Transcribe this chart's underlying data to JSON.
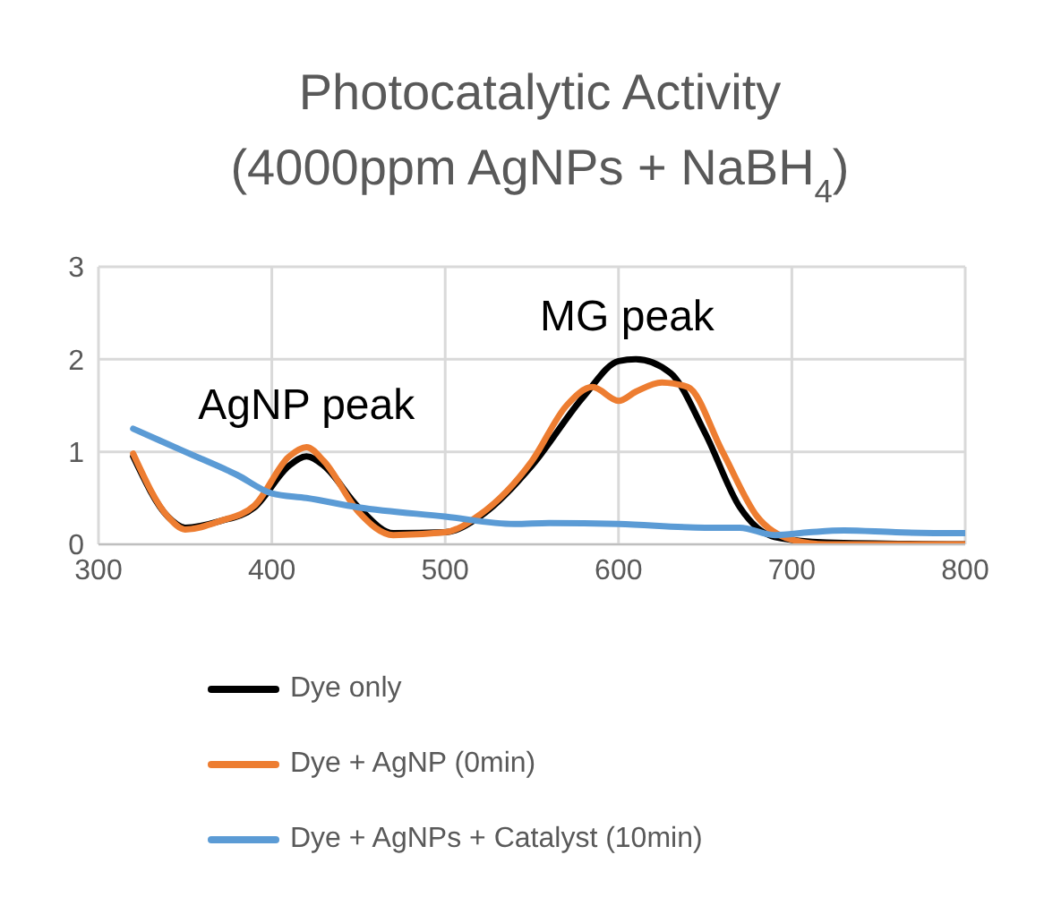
{
  "chart_data": {
    "type": "line",
    "title": "Photocatalytic Activity\n(4000ppm AgNPs + NaBH$_{4}$)",
    "xlim": [
      300,
      800
    ],
    "xticks": [
      300,
      400,
      500,
      600,
      700,
      800
    ],
    "ylim": [
      0,
      3
    ],
    "yticks": [
      0,
      1,
      2,
      3
    ],
    "grid": true,
    "legend": "bottom",
    "marker": "none",
    "line_style": "solid",
    "annotations": [
      {
        "text": "AgNP peak",
        "x": 420,
        "y": 1.05
      },
      {
        "text": "MG peak",
        "x": 605,
        "y": 2.0
      }
    ],
    "series": [
      {
        "name": "Dye only",
        "color": "#000000",
        "x": [
          320,
          340,
          350,
          370,
          390,
          410,
          420,
          430,
          450,
          470,
          500,
          520,
          550,
          580,
          600,
          610,
          630,
          650,
          670,
          690,
          720,
          800
        ],
        "values": [
          0.95,
          0.3,
          0.18,
          0.25,
          0.4,
          0.85,
          0.95,
          0.85,
          0.4,
          0.12,
          0.13,
          0.3,
          0.85,
          1.6,
          1.98,
          2.0,
          1.85,
          1.2,
          0.4,
          0.08,
          0.02,
          0.0
        ]
      },
      {
        "name": "Dye + AgNP (0min)",
        "color": "#ed7d31",
        "x": [
          320,
          340,
          350,
          370,
          390,
          410,
          420,
          430,
          450,
          470,
          500,
          520,
          550,
          570,
          585,
          600,
          610,
          625,
          640,
          660,
          680,
          700,
          720,
          800
        ],
        "values": [
          0.98,
          0.3,
          0.16,
          0.25,
          0.42,
          0.95,
          1.05,
          0.9,
          0.35,
          0.1,
          0.13,
          0.32,
          0.9,
          1.5,
          1.7,
          1.55,
          1.65,
          1.75,
          1.7,
          1.0,
          0.3,
          0.05,
          0.0,
          0.0
        ]
      },
      {
        "name": "Dye + AgNPs + Catalyst (10min)",
        "color": "#5b9bd5",
        "x": [
          320,
          350,
          380,
          400,
          420,
          450,
          500,
          540,
          560,
          600,
          650,
          670,
          690,
          710,
          730,
          760,
          800
        ],
        "values": [
          1.25,
          1.0,
          0.75,
          0.55,
          0.5,
          0.4,
          0.3,
          0.22,
          0.23,
          0.22,
          0.18,
          0.18,
          0.1,
          0.13,
          0.15,
          0.13,
          0.12
        ]
      }
    ]
  }
}
